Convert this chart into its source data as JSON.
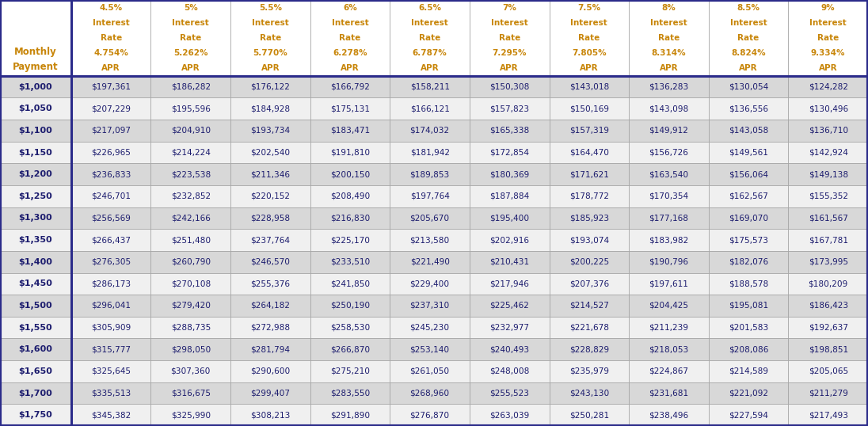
{
  "col_headers_line1": [
    "4.5%",
    "5%",
    "5.5%",
    "6%",
    "6.5%",
    "7%",
    "7.5%",
    "8%",
    "8.5%",
    "9%"
  ],
  "col_headers_line2": [
    "Interest",
    "Interest",
    "Interest",
    "Interest",
    "Interest",
    "Interest",
    "Interest",
    "Interest",
    "Interest",
    "Interest"
  ],
  "col_headers_line3": [
    "Rate",
    "Rate",
    "Rate",
    "Rate",
    "Rate",
    "Rate",
    "Rate",
    "Rate",
    "Rate",
    "Rate"
  ],
  "col_headers_line4": [
    "4.754%",
    "5.262%",
    "5.770%",
    "6.278%",
    "6.787%",
    "7.295%",
    "7.805%",
    "8.314%",
    "8.824%",
    "9.334%"
  ],
  "col_headers_line5": [
    "APR",
    "APR",
    "APR",
    "APR",
    "APR",
    "APR",
    "APR",
    "APR",
    "APR",
    "APR"
  ],
  "header_label_line1": "Monthly",
  "header_label_line2": "Payment",
  "row_labels": [
    "$1,000",
    "$1,050",
    "$1,100",
    "$1,150",
    "$1,200",
    "$1,250",
    "$1,300",
    "$1,350",
    "$1,400",
    "$1,450",
    "$1,500",
    "$1,550",
    "$1,600",
    "$1,650",
    "$1,700",
    "$1,750"
  ],
  "table_data": [
    [
      "$197,361",
      "$186,282",
      "$176,122",
      "$166,792",
      "$158,211",
      "$150,308",
      "$143,018",
      "$136,283",
      "$130,054",
      "$124,282"
    ],
    [
      "$207,229",
      "$195,596",
      "$184,928",
      "$175,131",
      "$166,121",
      "$157,823",
      "$150,169",
      "$143,098",
      "$136,556",
      "$130,496"
    ],
    [
      "$217,097",
      "$204,910",
      "$193,734",
      "$183,471",
      "$174,032",
      "$165,338",
      "$157,319",
      "$149,912",
      "$143,058",
      "$136,710"
    ],
    [
      "$226,965",
      "$214,224",
      "$202,540",
      "$191,810",
      "$181,942",
      "$172,854",
      "$164,470",
      "$156,726",
      "$149,561",
      "$142,924"
    ],
    [
      "$236,833",
      "$223,538",
      "$211,346",
      "$200,150",
      "$189,853",
      "$180,369",
      "$171,621",
      "$163,540",
      "$156,064",
      "$149,138"
    ],
    [
      "$246,701",
      "$232,852",
      "$220,152",
      "$208,490",
      "$197,764",
      "$187,884",
      "$178,772",
      "$170,354",
      "$162,567",
      "$155,352"
    ],
    [
      "$256,569",
      "$242,166",
      "$228,958",
      "$216,830",
      "$205,670",
      "$195,400",
      "$185,923",
      "$177,168",
      "$169,070",
      "$161,567"
    ],
    [
      "$266,437",
      "$251,480",
      "$237,764",
      "$225,170",
      "$213,580",
      "$202,916",
      "$193,074",
      "$183,982",
      "$175,573",
      "$167,781"
    ],
    [
      "$276,305",
      "$260,790",
      "$246,570",
      "$233,510",
      "$221,490",
      "$210,431",
      "$200,225",
      "$190,796",
      "$182,076",
      "$173,995"
    ],
    [
      "$286,173",
      "$270,108",
      "$255,376",
      "$241,850",
      "$229,400",
      "$217,946",
      "$207,376",
      "$197,611",
      "$188,578",
      "$180,209"
    ],
    [
      "$296,041",
      "$279,420",
      "$264,182",
      "$250,190",
      "$237,310",
      "$225,462",
      "$214,527",
      "$204,425",
      "$195,081",
      "$186,423"
    ],
    [
      "$305,909",
      "$288,735",
      "$272,988",
      "$258,530",
      "$245,230",
      "$232,977",
      "$221,678",
      "$211,239",
      "$201,583",
      "$192,637"
    ],
    [
      "$315,777",
      "$298,050",
      "$281,794",
      "$266,870",
      "$253,140",
      "$240,493",
      "$228,829",
      "$218,053",
      "$208,086",
      "$198,851"
    ],
    [
      "$325,645",
      "$307,360",
      "$290,600",
      "$275,210",
      "$261,050",
      "$248,008",
      "$235,979",
      "$224,867",
      "$214,589",
      "$205,065"
    ],
    [
      "$335,513",
      "$316,675",
      "$299,407",
      "$283,550",
      "$268,960",
      "$255,523",
      "$243,130",
      "$231,681",
      "$221,092",
      "$211,279"
    ],
    [
      "$345,382",
      "$325,990",
      "$308,213",
      "$291,890",
      "$276,870",
      "$263,039",
      "$250,281",
      "$238,496",
      "$227,594",
      "$217,493"
    ]
  ],
  "header_bg": "#FFFFFF",
  "header_text_color": "#C8860A",
  "row_label_bold_color": "#1C1C6E",
  "data_text_color": "#1C1C6E",
  "odd_row_bg": "#D8D8D8",
  "even_row_bg": "#F0F0F0",
  "grid_color": "#A0A0A0",
  "thick_border_color": "#2B2B8A",
  "outer_border_color": "#2B2B8A",
  "fig_bg": "#FFFFFF"
}
